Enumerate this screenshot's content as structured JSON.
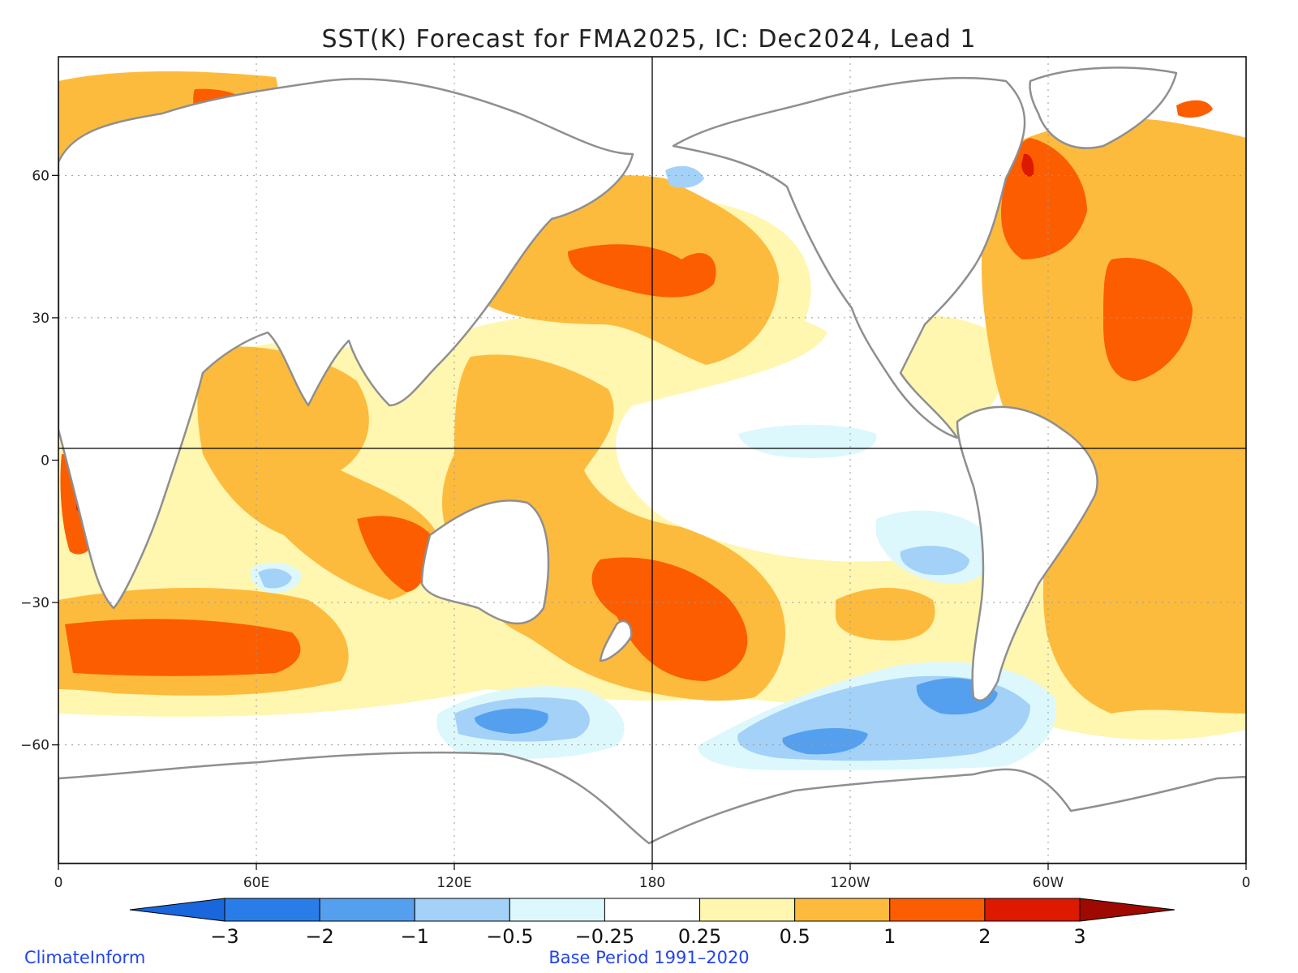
{
  "title": "SST(K) Forecast for FMA2025, IC: Dec2024, Lead 1",
  "credit_left": "ClimateInform",
  "credit_center": "Base Period 1991–2020",
  "axes": {
    "x_ticks": [
      {
        "lon": 0,
        "label": "0"
      },
      {
        "lon": 60,
        "label": "60E"
      },
      {
        "lon": 120,
        "label": "120E"
      },
      {
        "lon": 180,
        "label": "180"
      },
      {
        "lon": 240,
        "label": "120W"
      },
      {
        "lon": 300,
        "label": "60W"
      },
      {
        "lon": 360,
        "label": "0"
      }
    ],
    "y_ticks": [
      {
        "lat": 60,
        "label": "60"
      },
      {
        "lat": 30,
        "label": "30"
      },
      {
        "lat": 0,
        "label": "0"
      },
      {
        "lat": -30,
        "label": "−30"
      },
      {
        "lat": -60,
        "label": "−60"
      }
    ],
    "lon_range": [
      0,
      360
    ],
    "lat_range": [
      -85,
      85
    ]
  },
  "colorbar": {
    "labels": [
      "−3",
      "−2",
      "−1",
      "−0.5",
      "−0.25",
      "0.25",
      "0.5",
      "1",
      "2",
      "3"
    ],
    "colors": [
      "#1a66dd",
      "#2a7de9",
      "#55a0ee",
      "#a3d1f8",
      "#ddf8fd",
      "#ffffff",
      "#fff6b0",
      "#fdbb3d",
      "#fc5d00",
      "#dd1900",
      "#9e0a00"
    ]
  }
}
